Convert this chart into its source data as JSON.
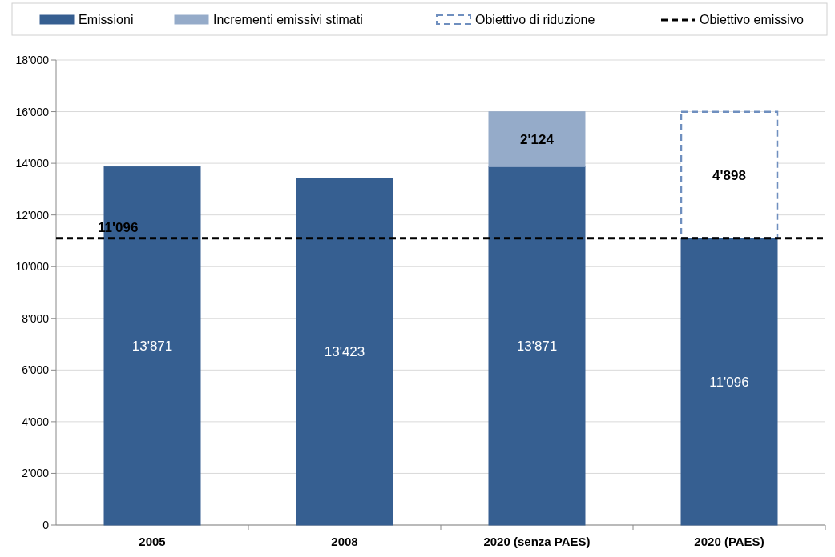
{
  "chart_data": {
    "type": "bar",
    "stacked": true,
    "categories": [
      "2005",
      "2008",
      "2020 (senza PAES)",
      "2020 (PAES)"
    ],
    "series": [
      {
        "name": "Emissioni",
        "color": "#365f91",
        "values": [
          13871,
          13423,
          13871,
          11096
        ],
        "value_labels": [
          "13'871",
          "13'423",
          "13'871",
          "11'096"
        ]
      },
      {
        "name": "Incrementi emissivi stimati",
        "color": "#95abc9",
        "values": [
          null,
          null,
          2124,
          null
        ],
        "value_labels": [
          null,
          null,
          "2'124",
          null
        ]
      },
      {
        "name": "Obiettivo di riduzione",
        "color": "#6f8fbf",
        "line_style": "dashed",
        "values": [
          null,
          null,
          null,
          4898
        ],
        "value_labels": [
          null,
          null,
          null,
          "4'898"
        ]
      }
    ],
    "ylim": [
      0,
      18000
    ],
    "yticks": [
      0,
      {
        "value": 2000,
        "label": "2'000"
      },
      {
        "value": 4000,
        "label": "4'000"
      },
      {
        "value": 6000,
        "label": "6'000"
      },
      {
        "value": 8000,
        "label": "8'000"
      },
      {
        "value": 10000,
        "label": "10'000"
      },
      {
        "value": 12000,
        "label": "12'000"
      },
      {
        "value": 14000,
        "label": "14'000"
      },
      {
        "value": 16000,
        "label": "16'000"
      },
      {
        "value": 18000,
        "label": "18'000"
      }
    ],
    "grid": "y",
    "legend": "top",
    "ref_lines": [
      {
        "axis": "y",
        "value": 11096,
        "label": "Obiettivo emissivo",
        "color": "#000000",
        "line_style": "dashed"
      }
    ],
    "annotations": [
      {
        "text": "11'096",
        "x": "2005",
        "y": 11096
      }
    ]
  }
}
